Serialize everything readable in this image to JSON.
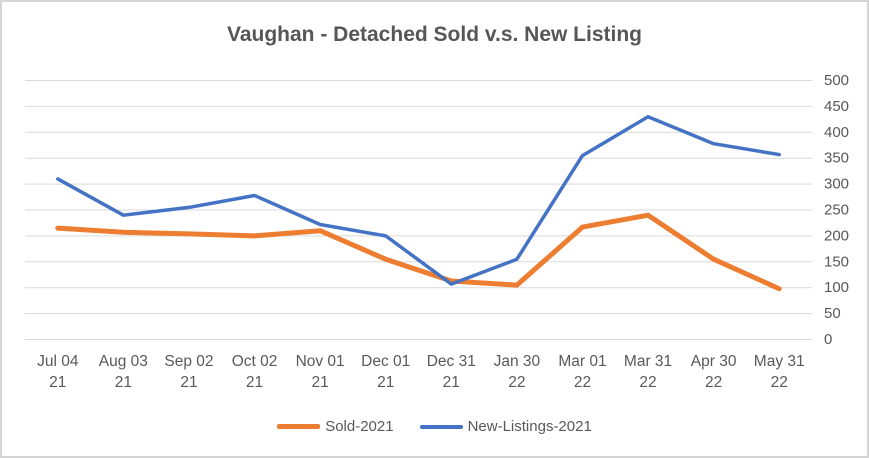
{
  "title": "Vaughan - Detached Sold v.s. New Listing",
  "colors": {
    "sold": "#ED7D31",
    "new_listings": "#4472C4",
    "gridline": "#D9D9D9",
    "axis_text": "#595959",
    "title_text": "#565656",
    "frame_border": "#D5D5D5",
    "background": "#FFFFFF"
  },
  "chart_data": {
    "type": "line",
    "title": "Vaughan - Detached Sold v.s. New Listing",
    "categories": [
      "Jul 04 21",
      "Aug 03 21",
      "Sep 02 21",
      "Oct 02 21",
      "Nov 01 21",
      "Dec 01 21",
      "Dec 31 21",
      "Jan 30 22",
      "Mar 01 22",
      "Mar 31 22",
      "Apr 30 22",
      "May 31 22"
    ],
    "series": [
      {
        "name": "Sold-2021",
        "color": "#ED7D31",
        "stroke_width": 5,
        "values": [
          215,
          207,
          204,
          200,
          210,
          155,
          113,
          105,
          217,
          240,
          155,
          98
        ]
      },
      {
        "name": "New-Listings-2021",
        "color": "#4472C4",
        "stroke_width": 3.5,
        "values": [
          310,
          240,
          255,
          278,
          222,
          200,
          107,
          155,
          355,
          430,
          378,
          357
        ]
      }
    ],
    "xlabel": "",
    "ylabel": "",
    "ylim": [
      0,
      500
    ],
    "y_ticks": [
      0,
      50,
      100,
      150,
      200,
      250,
      300,
      350,
      400,
      450,
      500
    ],
    "grid": true,
    "legend_position": "bottom",
    "y_axis_side": "right"
  }
}
